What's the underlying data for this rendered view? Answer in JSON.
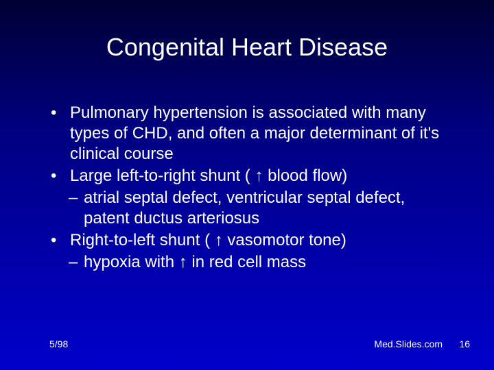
{
  "slide": {
    "title": "Congenital Heart Disease",
    "bullets": [
      {
        "level": 1,
        "prefix": "•",
        "text": "Pulmonary  hypertension is associated with many types of CHD, and often a major determinant of it's clinical course"
      },
      {
        "level": 1,
        "prefix": "•",
        "text_pre": "Large left-to-right shunt ( ",
        "arrow": "↑",
        "text_post": " blood flow)"
      },
      {
        "level": 2,
        "prefix": "–",
        "text": "atrial septal defect, ventricular septal defect, patent ductus arteriosus"
      },
      {
        "level": 1,
        "prefix": "•",
        "text_pre": "Right-to-left shunt ( ",
        "arrow": "↑",
        "text_post": " vasomotor tone)"
      },
      {
        "level": 2,
        "prefix": "–",
        "text_pre": "hypoxia with ",
        "arrow": "↑",
        "text_post": " in red cell mass"
      }
    ],
    "footer": {
      "date": "5/98",
      "source": "Med.Slides.com",
      "pagenum": "16"
    },
    "colors": {
      "text": "#ffffff",
      "bg_top": "#000033",
      "bg_mid": "#000080",
      "bg_bottom": "#0000cc"
    },
    "fonts": {
      "title_size_pt": 36,
      "body_size_pt": 24,
      "footer_size_pt": 14,
      "family": "Arial"
    }
  }
}
